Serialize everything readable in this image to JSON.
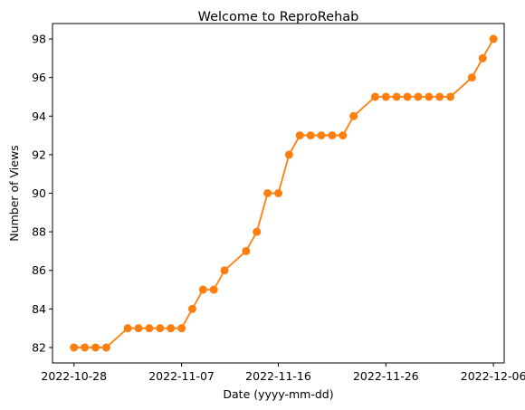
{
  "chart_data": {
    "type": "line",
    "title": "Welcome to ReproRehab",
    "xlabel": "Date (yyyy-mm-dd)",
    "ylabel": "Number of Views",
    "x_tick_labels": [
      "2022-10-28",
      "2022-11-07",
      "2022-11-16",
      "2022-11-26",
      "2022-12-06"
    ],
    "y_tick_labels": [
      "82",
      "84",
      "86",
      "88",
      "90",
      "92",
      "94",
      "96",
      "98"
    ],
    "xlim": [
      "2022-10-26",
      "2022-12-07"
    ],
    "ylim": [
      81.2,
      98.8
    ],
    "grid": false,
    "legend": "none",
    "series": [
      {
        "color": "#ff7f0e",
        "marker": "circle",
        "points": [
          {
            "x": "2022-10-28",
            "y": 82
          },
          {
            "x": "2022-10-29",
            "y": 82
          },
          {
            "x": "2022-10-30",
            "y": 82
          },
          {
            "x": "2022-10-31",
            "y": 82
          },
          {
            "x": "2022-11-02",
            "y": 83
          },
          {
            "x": "2022-11-03",
            "y": 83
          },
          {
            "x": "2022-11-04",
            "y": 83
          },
          {
            "x": "2022-11-05",
            "y": 83
          },
          {
            "x": "2022-11-06",
            "y": 83
          },
          {
            "x": "2022-11-07",
            "y": 83
          },
          {
            "x": "2022-11-08",
            "y": 84
          },
          {
            "x": "2022-11-09",
            "y": 85
          },
          {
            "x": "2022-11-10",
            "y": 85
          },
          {
            "x": "2022-11-11",
            "y": 86
          },
          {
            "x": "2022-11-13",
            "y": 87
          },
          {
            "x": "2022-11-14",
            "y": 88
          },
          {
            "x": "2022-11-15",
            "y": 90
          },
          {
            "x": "2022-11-16",
            "y": 90
          },
          {
            "x": "2022-11-17",
            "y": 92
          },
          {
            "x": "2022-11-18",
            "y": 93
          },
          {
            "x": "2022-11-19",
            "y": 93
          },
          {
            "x": "2022-11-20",
            "y": 93
          },
          {
            "x": "2022-11-21",
            "y": 93
          },
          {
            "x": "2022-11-22",
            "y": 93
          },
          {
            "x": "2022-11-23",
            "y": 94
          },
          {
            "x": "2022-11-25",
            "y": 95
          },
          {
            "x": "2022-11-26",
            "y": 95
          },
          {
            "x": "2022-11-27",
            "y": 95
          },
          {
            "x": "2022-11-28",
            "y": 95
          },
          {
            "x": "2022-11-29",
            "y": 95
          },
          {
            "x": "2022-11-30",
            "y": 95
          },
          {
            "x": "2022-12-01",
            "y": 95
          },
          {
            "x": "2022-12-02",
            "y": 95
          },
          {
            "x": "2022-12-04",
            "y": 96
          },
          {
            "x": "2022-12-05",
            "y": 97
          },
          {
            "x": "2022-12-06",
            "y": 98
          }
        ]
      }
    ]
  }
}
